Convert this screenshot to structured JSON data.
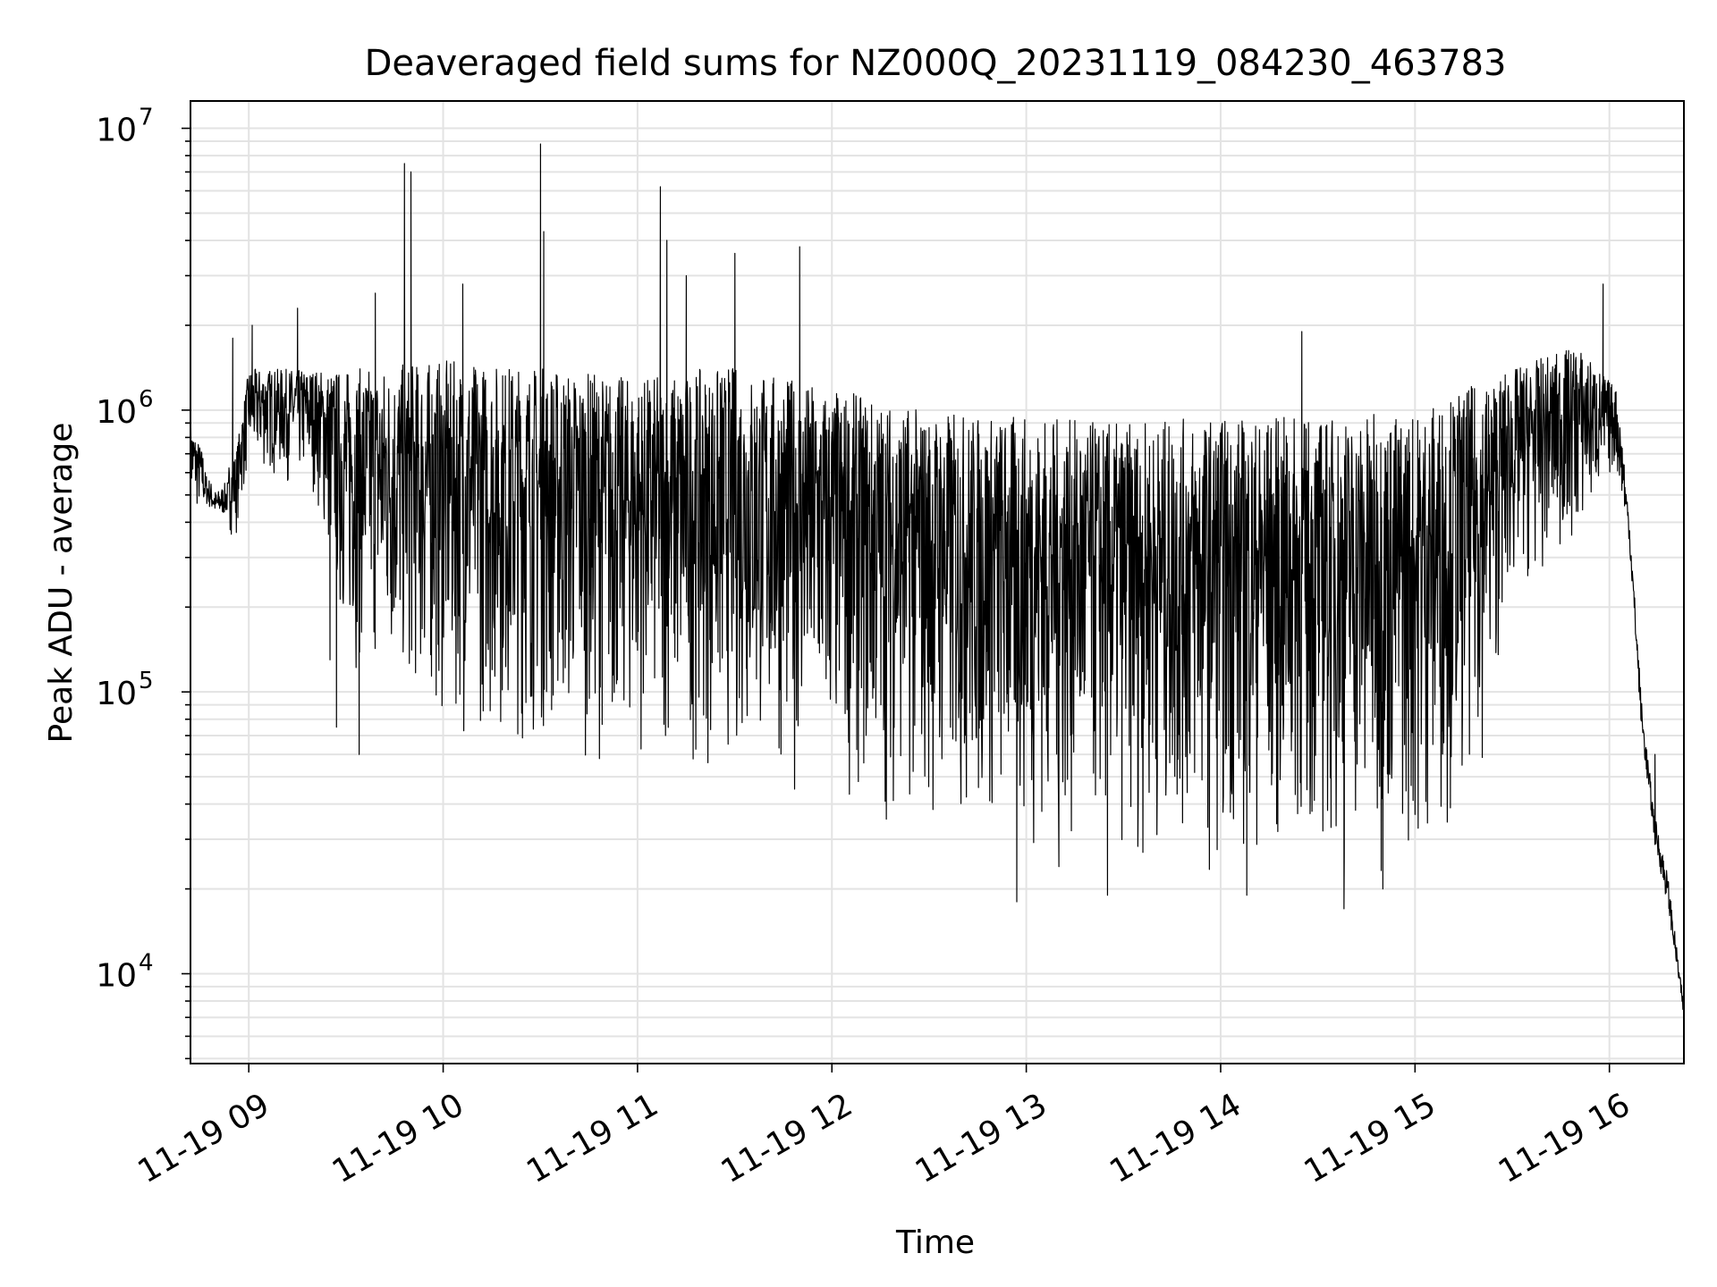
{
  "chart_data": {
    "type": "line",
    "title": "Deaveraged field sums for NZ000Q_20231119_084230_463783",
    "xlabel": "Time",
    "ylabel": "Peak ADU - average",
    "yscale": "log",
    "xlim": [
      "2023-11-19 08:42",
      "2023-11-19 16:23"
    ],
    "ylim": [
      4800,
      12500000
    ],
    "grid": "on",
    "legend": "none",
    "x_ticks": [
      "11-19 09",
      "11-19 10",
      "11-19 11",
      "11-19 12",
      "11-19 13",
      "11-19 14",
      "11-19 15",
      "11-19 16"
    ],
    "y_ticks": [
      {
        "value": 10000,
        "base": "10",
        "exp": "4"
      },
      {
        "value": 100000,
        "base": "10",
        "exp": "5"
      },
      {
        "value": 1000000,
        "base": "10",
        "exp": "6"
      },
      {
        "value": 10000000,
        "base": "10",
        "exp": "7"
      }
    ],
    "series": [
      {
        "color": "#000000",
        "upper_envelope": [
          [
            "2023-11-19 08:42",
            900000
          ],
          [
            "2023-11-19 08:50",
            550000
          ],
          [
            "2023-11-19 08:56",
            700000
          ],
          [
            "2023-11-19 09:00",
            1400000
          ],
          [
            "2023-11-19 09:30",
            1400000
          ],
          [
            "2023-11-19 10:00",
            1500000
          ],
          [
            "2023-11-19 10:30",
            1450000
          ],
          [
            "2023-11-19 11:00",
            1300000
          ],
          [
            "2023-11-19 11:30",
            1450000
          ],
          [
            "2023-11-19 12:00",
            1200000
          ],
          [
            "2023-11-19 12:30",
            1000000
          ],
          [
            "2023-11-19 13:00",
            950000
          ],
          [
            "2023-11-19 13:30",
            900000
          ],
          [
            "2023-11-19 14:00",
            950000
          ],
          [
            "2023-11-19 14:30",
            950000
          ],
          [
            "2023-11-19 15:00",
            1000000
          ],
          [
            "2023-11-19 15:30",
            1400000
          ],
          [
            "2023-11-19 15:50",
            1700000
          ],
          [
            "2023-11-19 16:02",
            1200000
          ],
          [
            "2023-11-19 16:06",
            500000
          ],
          [
            "2023-11-19 16:10",
            100000
          ],
          [
            "2023-11-19 16:14",
            40000
          ],
          [
            "2023-11-19 16:18",
            25000
          ],
          [
            "2023-11-19 16:23",
            8000
          ]
        ],
        "lower_envelope": [
          [
            "2023-11-19 08:42",
            420000
          ],
          [
            "2023-11-19 08:56",
            350000
          ],
          [
            "2023-11-19 09:00",
            600000
          ],
          [
            "2023-11-19 09:20",
            500000
          ],
          [
            "2023-11-19 09:30",
            120000
          ],
          [
            "2023-11-19 10:00",
            70000
          ],
          [
            "2023-11-19 10:30",
            60000
          ],
          [
            "2023-11-19 11:00",
            55000
          ],
          [
            "2023-11-19 11:30",
            50000
          ],
          [
            "2023-11-19 12:00",
            40000
          ],
          [
            "2023-11-19 12:30",
            30000
          ],
          [
            "2023-11-19 13:00",
            25000
          ],
          [
            "2023-11-19 13:30",
            24000
          ],
          [
            "2023-11-19 14:00",
            23000
          ],
          [
            "2023-11-19 14:30",
            22000
          ],
          [
            "2023-11-19 15:00",
            22000
          ],
          [
            "2023-11-19 15:20",
            50000
          ],
          [
            "2023-11-19 15:30",
            200000
          ],
          [
            "2023-11-19 15:50",
            300000
          ],
          [
            "2023-11-19 16:02",
            600000
          ],
          [
            "2023-11-19 16:06",
            300000
          ],
          [
            "2023-11-19 16:10",
            60000
          ],
          [
            "2023-11-19 16:14",
            25000
          ],
          [
            "2023-11-19 16:18",
            15000
          ],
          [
            "2023-11-19 16:23",
            6500
          ]
        ],
        "peaks": [
          [
            "2023-11-19 08:55",
            1800000
          ],
          [
            "2023-11-19 09:01",
            2000000
          ],
          [
            "2023-11-19 09:15",
            2300000
          ],
          [
            "2023-11-19 09:39",
            2600000
          ],
          [
            "2023-11-19 09:48",
            7500000
          ],
          [
            "2023-11-19 09:50",
            7000000
          ],
          [
            "2023-11-19 10:06",
            2800000
          ],
          [
            "2023-11-19 10:30",
            8800000
          ],
          [
            "2023-11-19 10:31",
            4300000
          ],
          [
            "2023-11-19 11:07",
            6200000
          ],
          [
            "2023-11-19 11:09",
            4000000
          ],
          [
            "2023-11-19 11:15",
            3000000
          ],
          [
            "2023-11-19 11:30",
            3600000
          ],
          [
            "2023-11-19 11:50",
            3800000
          ],
          [
            "2023-11-19 14:25",
            1900000
          ],
          [
            "2023-11-19 15:58",
            2800000
          ]
        ],
        "dips": [
          [
            "2023-11-19 09:25",
            130000
          ],
          [
            "2023-11-19 09:27",
            75000
          ],
          [
            "2023-11-19 09:34",
            60000
          ],
          [
            "2023-11-19 12:57",
            18000
          ],
          [
            "2023-11-19 13:10",
            24000
          ],
          [
            "2023-11-19 13:25",
            19000
          ],
          [
            "2023-11-19 14:08",
            19000
          ],
          [
            "2023-11-19 14:38",
            17000
          ],
          [
            "2023-11-19 14:50",
            20000
          ],
          [
            "2023-11-19 16:14",
            60000
          ]
        ]
      }
    ]
  }
}
